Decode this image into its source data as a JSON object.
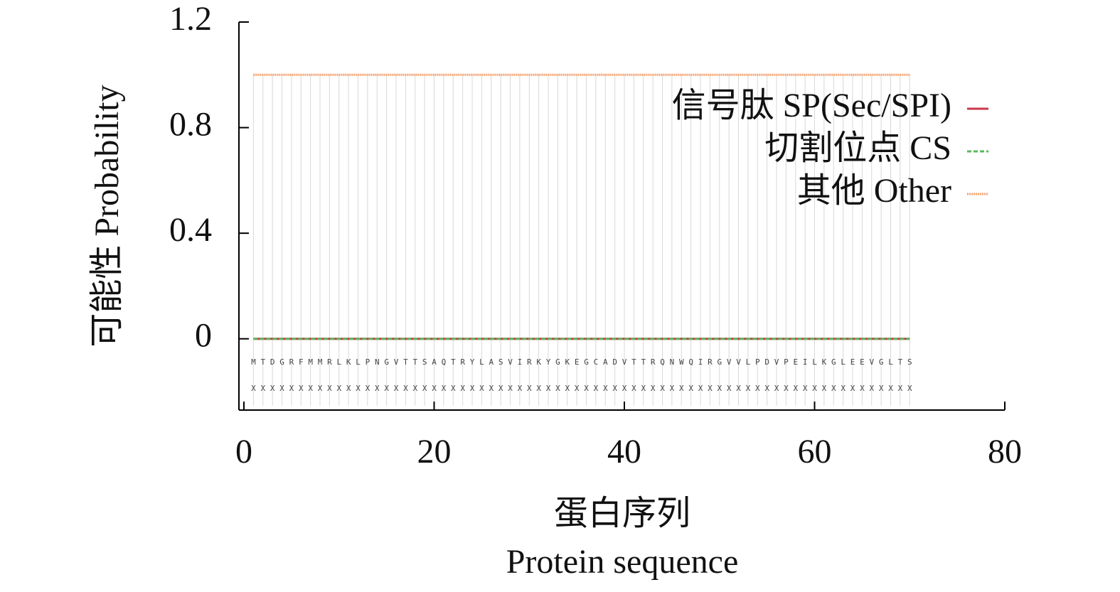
{
  "chart_data": {
    "type": "line",
    "x_label": "蛋白序列",
    "x_label_en": "Protein sequence",
    "y_label": "可能性 Probability",
    "xlim": [
      0,
      80
    ],
    "xticks": [
      0,
      20,
      40,
      60,
      80
    ],
    "ylim": [
      -0.27,
      1.2
    ],
    "yticks": [
      0,
      0.4,
      0.8,
      1.2
    ],
    "legend": "upper right",
    "x": [
      1,
      2,
      3,
      4,
      5,
      6,
      7,
      8,
      9,
      10,
      11,
      12,
      13,
      14,
      15,
      16,
      17,
      18,
      19,
      20,
      21,
      22,
      23,
      24,
      25,
      26,
      27,
      28,
      29,
      30,
      31,
      32,
      33,
      34,
      35,
      36,
      37,
      38,
      39,
      40,
      41,
      42,
      43,
      44,
      45,
      46,
      47,
      48,
      49,
      50,
      51,
      52,
      53,
      54,
      55,
      56,
      57,
      58,
      59,
      60,
      61,
      62,
      63,
      64,
      65,
      66,
      67,
      68,
      69,
      70
    ],
    "residues": [
      "M",
      "T",
      "D",
      "G",
      "R",
      "F",
      "M",
      "M",
      "R",
      "L",
      "K",
      "L",
      "P",
      "N",
      "G",
      "V",
      "T",
      "T",
      "S",
      "A",
      "Q",
      "T",
      "R",
      "Y",
      "L",
      "A",
      "S",
      "V",
      "I",
      "R",
      "K",
      "Y",
      "G",
      "K",
      "E",
      "G",
      "C",
      "A",
      "D",
      "V",
      "T",
      "T",
      "R",
      "Q",
      "N",
      "W",
      "Q",
      "I",
      "R",
      "G",
      "V",
      "V",
      "L",
      "P",
      "D",
      "V",
      "P",
      "E",
      "I",
      "L",
      "K",
      "G",
      "L",
      "E",
      "E",
      "V",
      "G",
      "L",
      "T",
      "S"
    ],
    "annotations": [
      "X",
      "X",
      "X",
      "X",
      "X",
      "X",
      "X",
      "X",
      "X",
      "X",
      "X",
      "X",
      "X",
      "X",
      "X",
      "X",
      "X",
      "X",
      "X",
      "X",
      "X",
      "X",
      "X",
      "X",
      "X",
      "X",
      "X",
      "X",
      "X",
      "X",
      "X",
      "X",
      "X",
      "X",
      "X",
      "X",
      "X",
      "X",
      "X",
      "X",
      "X",
      "X",
      "X",
      "X",
      "X",
      "X",
      "X",
      "X",
      "X",
      "X",
      "X",
      "X",
      "X",
      "X",
      "X",
      "X",
      "X",
      "X",
      "X",
      "X",
      "X",
      "X",
      "X",
      "X",
      "X",
      "X",
      "X",
      "X",
      "X",
      "X"
    ],
    "series": [
      {
        "name": "信号肽 SP(Sec/SPI)",
        "color": "#c8374a",
        "dash": "solid",
        "values": [
          0,
          0,
          0,
          0,
          0,
          0,
          0,
          0,
          0,
          0,
          0,
          0,
          0,
          0,
          0,
          0,
          0,
          0,
          0,
          0,
          0,
          0,
          0,
          0,
          0,
          0,
          0,
          0,
          0,
          0,
          0,
          0,
          0,
          0,
          0,
          0,
          0,
          0,
          0,
          0,
          0,
          0,
          0,
          0,
          0,
          0,
          0,
          0,
          0,
          0,
          0,
          0,
          0,
          0,
          0,
          0,
          0,
          0,
          0,
          0,
          0,
          0,
          0,
          0,
          0,
          0,
          0,
          0,
          0,
          0
        ]
      },
      {
        "name": "切割位点 CS",
        "color": "#5cb85c",
        "dash": "dashed",
        "values": [
          0,
          0,
          0,
          0,
          0,
          0,
          0,
          0,
          0,
          0,
          0,
          0,
          0,
          0,
          0,
          0,
          0,
          0,
          0,
          0,
          0,
          0,
          0,
          0,
          0,
          0,
          0,
          0,
          0,
          0,
          0,
          0,
          0,
          0,
          0,
          0,
          0,
          0,
          0,
          0,
          0,
          0,
          0,
          0,
          0,
          0,
          0,
          0,
          0,
          0,
          0,
          0,
          0,
          0,
          0,
          0,
          0,
          0,
          0,
          0,
          0,
          0,
          0,
          0,
          0,
          0,
          0,
          0,
          0,
          0
        ]
      },
      {
        "name": "其他 Other",
        "color": "#f2a26e",
        "dash": "dotted",
        "values": [
          1,
          1,
          1,
          1,
          1,
          1,
          1,
          1,
          1,
          1,
          1,
          1,
          1,
          1,
          1,
          1,
          1,
          1,
          1,
          1,
          1,
          1,
          1,
          1,
          1,
          1,
          1,
          1,
          1,
          1,
          1,
          1,
          1,
          1,
          1,
          1,
          1,
          1,
          1,
          1,
          1,
          1,
          1,
          1,
          1,
          1,
          1,
          1,
          1,
          1,
          1,
          1,
          1,
          1,
          1,
          1,
          1,
          1,
          1,
          1,
          1,
          1,
          1,
          1,
          1,
          1,
          1,
          1,
          1,
          1
        ]
      }
    ]
  }
}
